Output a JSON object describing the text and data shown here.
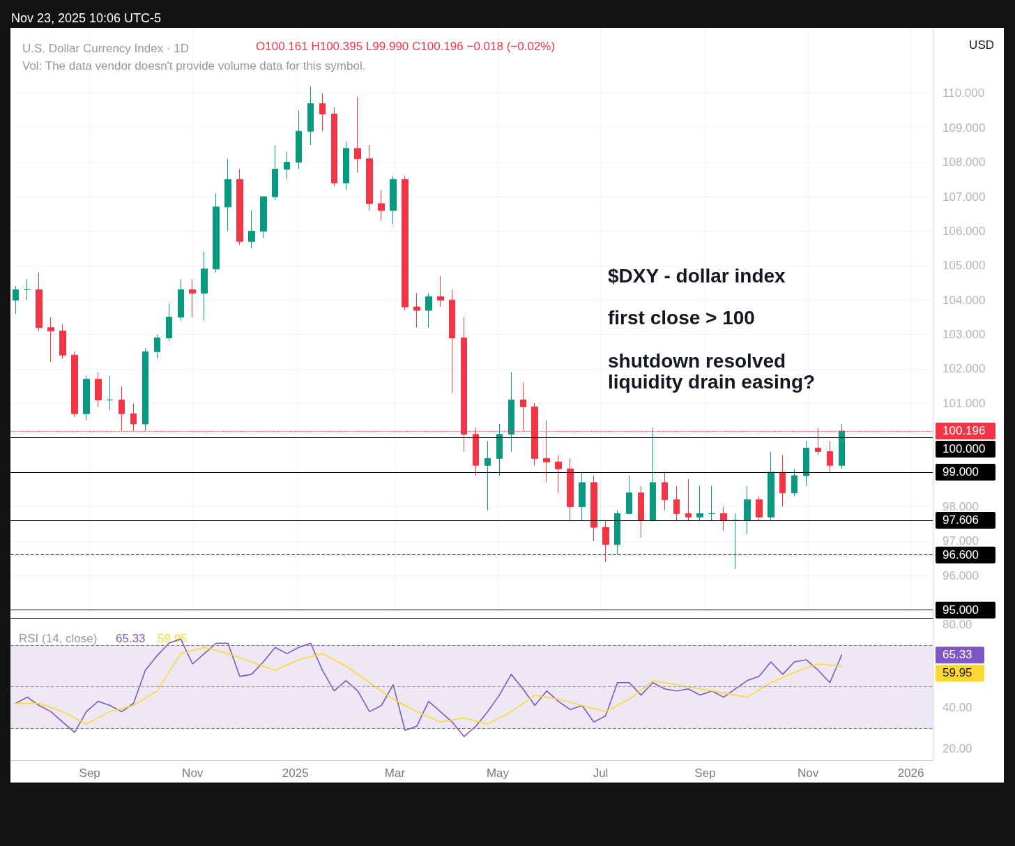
{
  "chart_data": [
    {
      "type": "candlestick",
      "title": "U.S. Dollar Currency Index · 1D",
      "subtitle": "Vol: The data vendor doesn't provide volume data for this symbol.",
      "ylabel": "USD",
      "annotations": [
        "$DXY - dollar index",
        "first close > 100",
        "shutdown resolved\nliquidity drain easing?",
        "O100.161 H100.395 L99.990 C100.196 −0.018 (−0.02%)",
        "Nov 23, 2025 10:06 UTC-5"
      ],
      "x": [
        "2024-07-19",
        "2024-07-26",
        "2024-08-02",
        "2024-08-09",
        "2024-08-16",
        "2024-08-23",
        "2024-08-30",
        "2024-09-06",
        "2024-09-13",
        "2024-09-20",
        "2024-09-27",
        "2024-10-04",
        "2024-10-11",
        "2024-10-18",
        "2024-10-25",
        "2024-11-01",
        "2024-11-08",
        "2024-11-15",
        "2024-11-22",
        "2024-11-29",
        "2024-12-06",
        "2024-12-13",
        "2024-12-20",
        "2024-12-27",
        "2025-01-03",
        "2025-01-10",
        "2025-01-17",
        "2025-01-24",
        "2025-01-31",
        "2025-02-07",
        "2025-02-14",
        "2025-02-21",
        "2025-02-28",
        "2025-03-07",
        "2025-03-14",
        "2025-03-21",
        "2025-03-28",
        "2025-04-04",
        "2025-04-11",
        "2025-04-18",
        "2025-04-25",
        "2025-05-02",
        "2025-05-09",
        "2025-05-16",
        "2025-05-23",
        "2025-05-30",
        "2025-06-06",
        "2025-06-13",
        "2025-06-20",
        "2025-06-27",
        "2025-07-04",
        "2025-07-11",
        "2025-07-18",
        "2025-07-25",
        "2025-08-01",
        "2025-08-08",
        "2025-08-15",
        "2025-08-22",
        "2025-08-29",
        "2025-09-05",
        "2025-09-12",
        "2025-09-19",
        "2025-09-26",
        "2025-10-03",
        "2025-10-10",
        "2025-10-17",
        "2025-10-24",
        "2025-10-31",
        "2025-11-07",
        "2025-11-14",
        "2025-11-21"
      ],
      "ohlc": [
        [
          104.0,
          104.4,
          103.6,
          104.3
        ],
        [
          104.3,
          104.6,
          104.0,
          104.3
        ],
        [
          104.3,
          104.8,
          103.1,
          103.2
        ],
        [
          103.2,
          103.5,
          102.2,
          103.1
        ],
        [
          103.1,
          103.3,
          102.3,
          102.4
        ],
        [
          102.4,
          102.5,
          100.6,
          100.7
        ],
        [
          100.7,
          101.8,
          100.5,
          101.7
        ],
        [
          101.7,
          101.9,
          100.9,
          101.1
        ],
        [
          101.1,
          101.8,
          100.8,
          101.1
        ],
        [
          101.1,
          101.5,
          100.2,
          100.7
        ],
        [
          100.7,
          101.0,
          100.2,
          100.4
        ],
        [
          100.4,
          102.6,
          100.2,
          102.5
        ],
        [
          102.5,
          103.0,
          102.3,
          102.9
        ],
        [
          102.9,
          103.9,
          102.8,
          103.5
        ],
        [
          103.5,
          104.6,
          103.4,
          104.3
        ],
        [
          104.3,
          104.6,
          103.5,
          104.2
        ],
        [
          104.2,
          105.4,
          103.4,
          104.9
        ],
        [
          104.9,
          107.1,
          104.8,
          106.7
        ],
        [
          106.7,
          108.1,
          106.0,
          107.5
        ],
        [
          107.5,
          107.8,
          105.6,
          105.7
        ],
        [
          105.7,
          106.6,
          105.5,
          106.0
        ],
        [
          106.0,
          107.0,
          105.8,
          107.0
        ],
        [
          107.0,
          108.5,
          106.9,
          107.8
        ],
        [
          107.8,
          108.3,
          107.5,
          108.0
        ],
        [
          108.0,
          109.5,
          107.8,
          108.9
        ],
        [
          108.9,
          110.2,
          108.5,
          109.7
        ],
        [
          109.7,
          110.0,
          108.9,
          109.4
        ],
        [
          109.4,
          109.6,
          107.3,
          107.4
        ],
        [
          107.4,
          108.6,
          107.2,
          108.4
        ],
        [
          108.4,
          109.9,
          107.7,
          108.1
        ],
        [
          108.1,
          108.5,
          106.6,
          106.8
        ],
        [
          106.8,
          107.2,
          106.3,
          106.6
        ],
        [
          106.6,
          107.6,
          106.2,
          107.5
        ],
        [
          107.5,
          107.6,
          103.7,
          103.8
        ],
        [
          103.8,
          104.2,
          103.2,
          103.7
        ],
        [
          103.7,
          104.2,
          103.2,
          104.1
        ],
        [
          104.1,
          104.7,
          103.8,
          104.0
        ],
        [
          104.0,
          104.3,
          101.3,
          102.9
        ],
        [
          102.9,
          103.5,
          99.6,
          100.1
        ],
        [
          100.1,
          100.3,
          98.9,
          99.2
        ],
        [
          99.2,
          99.9,
          97.9,
          99.4
        ],
        [
          99.4,
          100.4,
          98.9,
          100.1
        ],
        [
          100.1,
          101.9,
          99.6,
          101.1
        ],
        [
          101.1,
          101.6,
          100.2,
          100.9
        ],
        [
          100.9,
          101.0,
          99.2,
          99.4
        ],
        [
          99.4,
          100.5,
          98.7,
          99.3
        ],
        [
          99.3,
          99.5,
          98.4,
          99.1
        ],
        [
          99.1,
          99.4,
          97.6,
          98.0
        ],
        [
          98.0,
          99.0,
          97.6,
          98.7
        ],
        [
          98.7,
          98.9,
          97.0,
          97.4
        ],
        [
          97.4,
          97.6,
          96.4,
          96.9
        ],
        [
          96.9,
          97.9,
          96.6,
          97.8
        ],
        [
          97.8,
          98.9,
          97.8,
          98.4
        ],
        [
          98.4,
          98.6,
          97.1,
          97.6
        ],
        [
          97.6,
          100.3,
          97.6,
          98.7
        ],
        [
          98.7,
          99.0,
          97.9,
          98.2
        ],
        [
          98.2,
          98.6,
          97.6,
          97.8
        ],
        [
          97.8,
          98.8,
          97.6,
          97.7
        ],
        [
          97.7,
          98.6,
          97.6,
          97.8
        ],
        [
          97.8,
          98.6,
          97.6,
          97.8
        ],
        [
          97.8,
          98.0,
          97.3,
          97.6
        ],
        [
          97.6,
          97.8,
          96.2,
          97.6
        ],
        [
          97.6,
          98.6,
          97.2,
          98.2
        ],
        [
          98.2,
          98.3,
          97.6,
          97.7
        ],
        [
          97.7,
          99.6,
          97.6,
          99.0
        ],
        [
          99.0,
          99.5,
          98.0,
          98.4
        ],
        [
          98.4,
          99.1,
          98.3,
          98.9
        ],
        [
          98.9,
          99.9,
          98.6,
          99.7
        ],
        [
          99.7,
          100.3,
          99.5,
          99.6
        ],
        [
          99.6,
          99.9,
          99.0,
          99.2
        ],
        [
          99.2,
          100.395,
          99.1,
          100.196
        ]
      ],
      "xlim": [
        "2024-07-16",
        "2026-01-14"
      ],
      "xticks": [
        {
          "value": "2024-09-01",
          "label": null
        },
        {
          "value": "2024-11-01",
          "label": null
        },
        {
          "value": "2025-01-01",
          "label": null
        },
        {
          "value": "2025-03-01",
          "label": null
        },
        {
          "value": "2025-05-01",
          "label": null
        },
        {
          "value": "2025-07-01",
          "label": null
        },
        {
          "value": "2025-09-01",
          "label": null
        },
        {
          "value": "2025-11-01",
          "label": null
        },
        {
          "value": "2026-01-01",
          "label": null
        }
      ],
      "ylim": [
        94.75,
        111.9
      ],
      "yticks": [
        {
          "value": 96,
          "label": "96.000"
        },
        {
          "value": 97,
          "label": "97.000"
        },
        {
          "value": 98,
          "label": "98.000"
        },
        {
          "value": 101,
          "label": "101.000"
        },
        {
          "value": 102,
          "label": "102.000"
        },
        {
          "value": 103,
          "label": "103.000"
        },
        {
          "value": 104,
          "label": "104.000"
        },
        {
          "value": 105,
          "label": "105.000"
        },
        {
          "value": 106,
          "label": "106.000"
        },
        {
          "value": 107,
          "label": "107.000"
        },
        {
          "value": 108,
          "label": "108.000"
        },
        {
          "value": 109,
          "label": "109.000"
        },
        {
          "value": 110,
          "label": "110.000"
        }
      ],
      "grid": true,
      "tick_labels": "y",
      "ref_lines": [
        {
          "axis": "y",
          "value": 100.196,
          "label": "100.196",
          "color": "#f23645",
          "line_style": "dotted"
        },
        {
          "axis": "y",
          "value": 100,
          "label": "100.000",
          "color": "#000000",
          "line_style": "solid"
        },
        {
          "axis": "y",
          "value": 99,
          "label": "99.000",
          "color": "#000000",
          "line_style": "solid"
        },
        {
          "axis": "y",
          "value": 97.606,
          "label": "97.606",
          "color": "#000000",
          "line_style": "solid"
        },
        {
          "axis": "y",
          "value": 96.6,
          "label": "96.600",
          "color": "#000000",
          "line_style": "dashed"
        },
        {
          "axis": "y",
          "value": 95,
          "label": "95.000",
          "color": "#000000",
          "line_style": "solid"
        }
      ]
    },
    {
      "type": "line",
      "title": "RSI (14, close)",
      "marker": "none",
      "series": [
        {
          "color": "#7e57c2",
          "x": [
            "2024-07-19",
            "2024-07-26",
            "2024-08-02",
            "2024-08-09",
            "2024-08-16",
            "2024-08-23",
            "2024-08-30",
            "2024-09-06",
            "2024-09-13",
            "2024-09-20",
            "2024-09-27",
            "2024-10-04",
            "2024-10-11",
            "2024-10-18",
            "2024-10-25",
            "2024-11-01",
            "2024-11-08",
            "2024-11-15",
            "2024-11-22",
            "2024-11-29",
            "2024-12-06",
            "2024-12-13",
            "2024-12-20",
            "2024-12-27",
            "2025-01-03",
            "2025-01-10",
            "2025-01-17",
            "2025-01-24",
            "2025-01-31",
            "2025-02-07",
            "2025-02-14",
            "2025-02-21",
            "2025-02-28",
            "2025-03-07",
            "2025-03-14",
            "2025-03-21",
            "2025-03-28",
            "2025-04-04",
            "2025-04-11",
            "2025-04-18",
            "2025-04-25",
            "2025-05-02",
            "2025-05-09",
            "2025-05-16",
            "2025-05-23",
            "2025-05-30",
            "2025-06-06",
            "2025-06-13",
            "2025-06-20",
            "2025-06-27",
            "2025-07-04",
            "2025-07-11",
            "2025-07-18",
            "2025-07-25",
            "2025-08-01",
            "2025-08-08",
            "2025-08-15",
            "2025-08-22",
            "2025-08-29",
            "2025-09-05",
            "2025-09-12",
            "2025-09-19",
            "2025-09-26",
            "2025-10-03",
            "2025-10-10",
            "2025-10-17",
            "2025-10-24",
            "2025-10-31",
            "2025-11-07",
            "2025-11-14",
            "2025-11-21"
          ],
          "values": [
            42,
            45,
            41,
            38,
            33,
            28,
            38,
            43,
            41,
            38,
            42,
            58,
            65,
            71,
            73,
            61,
            66,
            71,
            71,
            55,
            56,
            62,
            69,
            66,
            69,
            71,
            58,
            48,
            53,
            48,
            38,
            41,
            51,
            29,
            31,
            43,
            38,
            33,
            26,
            31,
            38,
            46,
            56,
            49,
            41,
            48,
            43,
            39,
            41,
            33,
            36,
            52,
            52,
            46,
            52,
            49,
            48,
            49,
            46,
            48,
            45,
            49,
            53,
            55,
            62,
            56,
            62,
            63,
            58,
            52,
            65.33
          ]
        },
        {
          "color": "#fdd835",
          "x": [
            "2024-07-19",
            "2024-08-02",
            "2024-08-16",
            "2024-08-30",
            "2024-09-13",
            "2024-09-27",
            "2024-10-11",
            "2024-10-25",
            "2024-11-08",
            "2024-11-22",
            "2024-12-06",
            "2024-12-20",
            "2025-01-03",
            "2025-01-17",
            "2025-01-31",
            "2025-02-14",
            "2025-02-28",
            "2025-03-14",
            "2025-03-28",
            "2025-04-11",
            "2025-04-25",
            "2025-05-09",
            "2025-05-23",
            "2025-06-06",
            "2025-06-20",
            "2025-07-04",
            "2025-07-18",
            "2025-08-01",
            "2025-08-15",
            "2025-08-29",
            "2025-09-12",
            "2025-09-26",
            "2025-10-10",
            "2025-10-24",
            "2025-11-07",
            "2025-11-21"
          ],
          "values": [
            42,
            42,
            38,
            32,
            38,
            41,
            48,
            66,
            69,
            66,
            62,
            58,
            63,
            66,
            60,
            52,
            44,
            38,
            33,
            35,
            32,
            38,
            46,
            44,
            41,
            38,
            44,
            53,
            51,
            49,
            47,
            45,
            52,
            57,
            61,
            59.95
          ]
        }
      ],
      "annotations": [
        "65.33",
        "59.95"
      ],
      "xlim": [
        "2024-07-16",
        "2026-01-14"
      ],
      "xticks": [
        {
          "value": "2024-09-01",
          "label": "Sep"
        },
        {
          "value": "2024-11-01",
          "label": "Nov"
        },
        {
          "value": "2025-01-01",
          "label": "2025"
        },
        {
          "value": "2025-03-01",
          "label": "Mar"
        },
        {
          "value": "2025-05-01",
          "label": "May"
        },
        {
          "value": "2025-07-01",
          "label": "Jul"
        },
        {
          "value": "2025-09-01",
          "label": "Sep"
        },
        {
          "value": "2025-11-01",
          "label": "Nov"
        },
        {
          "value": "2026-01-01",
          "label": "2026"
        }
      ],
      "ylim": [
        14.6,
        82.7
      ],
      "yticks": [
        {
          "value": 20,
          "label": "20.00"
        },
        {
          "value": 40,
          "label": "40.00"
        },
        {
          "value": 80,
          "label": "80.00"
        }
      ],
      "bands": [
        {
          "axis": "y",
          "from": 30,
          "to": 70,
          "color": "#ede7f6"
        }
      ],
      "ref_lines": [
        {
          "axis": "y",
          "value": 70,
          "color": "#787b86",
          "line_style": "dashed"
        },
        {
          "axis": "y",
          "value": 50,
          "color": "#9598a1",
          "line_style": "dashed"
        },
        {
          "axis": "y",
          "value": 30,
          "color": "#787b86",
          "line_style": "dashed"
        }
      ]
    }
  ]
}
